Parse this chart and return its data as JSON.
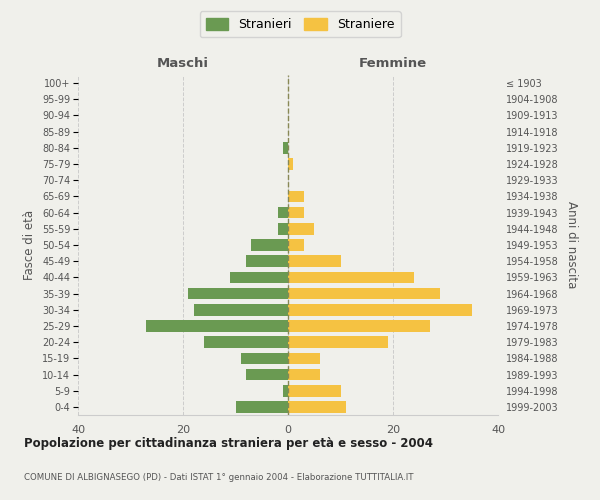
{
  "age_groups_bottom_to_top": [
    "0-4",
    "5-9",
    "10-14",
    "15-19",
    "20-24",
    "25-29",
    "30-34",
    "35-39",
    "40-44",
    "45-49",
    "50-54",
    "55-59",
    "60-64",
    "65-69",
    "70-74",
    "75-79",
    "80-84",
    "85-89",
    "90-94",
    "95-99",
    "100+"
  ],
  "birth_years_bottom_to_top": [
    "1999-2003",
    "1994-1998",
    "1989-1993",
    "1984-1988",
    "1979-1983",
    "1974-1978",
    "1969-1973",
    "1964-1968",
    "1959-1963",
    "1954-1958",
    "1949-1953",
    "1944-1948",
    "1939-1943",
    "1934-1938",
    "1929-1933",
    "1924-1928",
    "1919-1923",
    "1914-1918",
    "1909-1913",
    "1904-1908",
    "≤ 1903"
  ],
  "males_bottom_to_top": [
    10,
    1,
    8,
    9,
    16,
    27,
    18,
    19,
    11,
    8,
    7,
    2,
    2,
    0,
    0,
    0,
    1,
    0,
    0,
    0,
    0
  ],
  "females_bottom_to_top": [
    11,
    10,
    6,
    6,
    19,
    27,
    35,
    29,
    24,
    10,
    3,
    5,
    3,
    3,
    0,
    1,
    0,
    0,
    0,
    0,
    0
  ],
  "male_color": "#6a9a52",
  "female_color": "#f5c242",
  "background_color": "#f0f0eb",
  "grid_color": "#cccccc",
  "text_color": "#555555",
  "title": "Popolazione per cittadinanza straniera per età e sesso - 2004",
  "subtitle": "COMUNE DI ALBIGNASEGO (PD) - Dati ISTAT 1° gennaio 2004 - Elaborazione TUTTITALIA.IT",
  "legend_stranieri": "Stranieri",
  "legend_straniere": "Straniere",
  "maschi_label": "Maschi",
  "femmine_label": "Femmine",
  "fasce_label": "Fasce di età",
  "anni_label": "Anni di nascita",
  "xlim": 40
}
